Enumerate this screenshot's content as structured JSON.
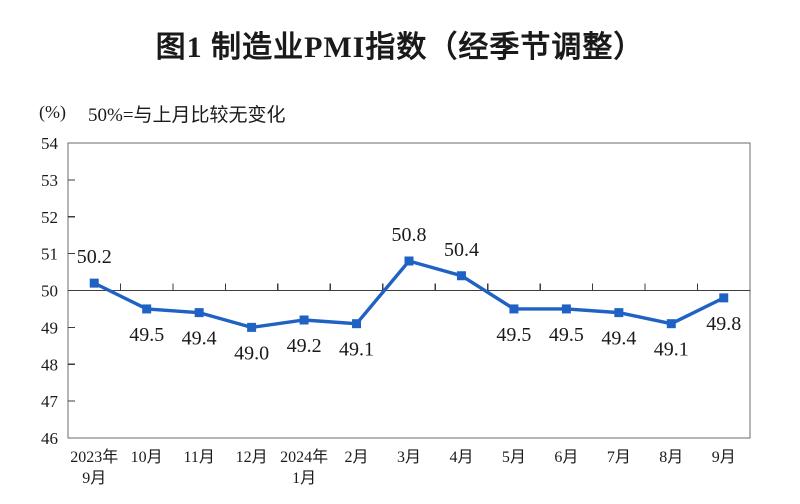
{
  "chart_data": {
    "type": "line",
    "title": "图1 制造业PMI指数（经季节调整）",
    "unit_label": "(%)",
    "annotation": "50%=与上月比较无变化",
    "categories": [
      [
        "2023年",
        "9月"
      ],
      [
        "10月"
      ],
      [
        "11月"
      ],
      [
        "12月"
      ],
      [
        "2024年",
        "1月"
      ],
      [
        "2月"
      ],
      [
        "3月"
      ],
      [
        "4月"
      ],
      [
        "5月"
      ],
      [
        "6月"
      ],
      [
        "7月"
      ],
      [
        "8月"
      ],
      [
        "9月"
      ]
    ],
    "values": [
      50.2,
      49.5,
      49.4,
      49.0,
      49.2,
      49.1,
      50.8,
      50.4,
      49.5,
      49.5,
      49.4,
      49.1,
      49.8
    ],
    "data_label_positions": [
      "above",
      "below",
      "below",
      "below",
      "below",
      "below",
      "above",
      "above",
      "below",
      "below",
      "below",
      "below",
      "below"
    ],
    "ylim": [
      46,
      54
    ],
    "ytick_step": 1,
    "yticks": [
      46,
      47,
      48,
      49,
      50,
      51,
      52,
      53,
      54
    ],
    "reference_line": 50,
    "grid": "off",
    "legend": "none",
    "marker": "square",
    "colors": {
      "series": "#1F62C4",
      "frame": "#6B6B6B",
      "reference_axis": "#3D3D3D",
      "text": "#1A1A1A"
    }
  }
}
